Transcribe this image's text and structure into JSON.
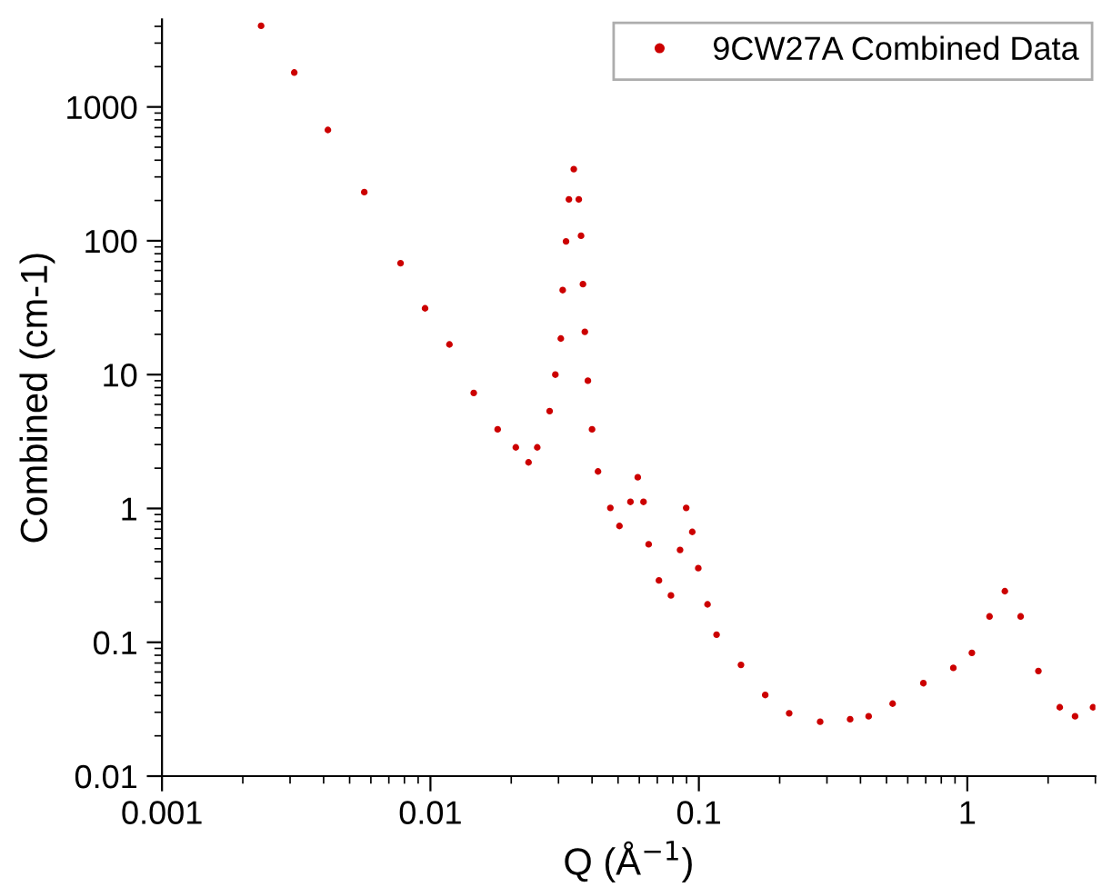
{
  "chart_data": {
    "type": "scatter",
    "xlabel": "Q (Å$^{−1}$)",
    "ylabel": "Combined (cm-1)",
    "log": "xy",
    "marker": "circle",
    "legend": "top right",
    "grid": false,
    "xlim": [
      0.001,
      3
    ],
    "ylim": [
      0.01,
      4500
    ],
    "xticks": [
      {
        "value": 0.001,
        "label": "0.001"
      },
      {
        "value": 0.01,
        "label": "0.01"
      },
      {
        "value": 0.1,
        "label": "0.1"
      },
      {
        "value": 1,
        "label": "1"
      }
    ],
    "yticks": [
      {
        "value": 0.01,
        "label": "0.01"
      },
      {
        "value": 0.1,
        "label": "0.1"
      },
      {
        "value": 1,
        "label": "1"
      },
      {
        "value": 10,
        "label": "10"
      },
      {
        "value": 100,
        "label": "100"
      },
      {
        "value": 1000,
        "label": "1000"
      }
    ],
    "series": [
      {
        "name": "9CW27A Combined Data",
        "color": "#cc0000",
        "x": [
          0.00234,
          0.00311,
          0.00415,
          0.00567,
          0.00774,
          0.00955,
          0.01177,
          0.0145,
          0.0178,
          0.0208,
          0.0232,
          0.025,
          0.0278,
          0.0292,
          0.0306,
          0.0311,
          0.032,
          0.0328,
          0.0342,
          0.0357,
          0.0364,
          0.037,
          0.0376,
          0.0386,
          0.04,
          0.0421,
          0.0468,
          0.0506,
          0.0556,
          0.0592,
          0.0622,
          0.065,
          0.071,
          0.0787,
          0.0851,
          0.0897,
          0.0945,
          0.0995,
          0.1077,
          0.1164,
          0.1435,
          0.1767,
          0.217,
          0.283,
          0.366,
          0.429,
          0.527,
          0.686,
          0.887,
          1.04,
          1.21,
          1.38,
          1.58,
          1.84,
          2.21,
          2.52,
          2.94
        ],
        "values": [
          4036,
          1808,
          673,
          231,
          68,
          31.3,
          16.8,
          7.3,
          3.9,
          2.86,
          2.21,
          2.86,
          5.34,
          10,
          18.6,
          42.8,
          99,
          204,
          343,
          204,
          109,
          47.4,
          20.9,
          9.0,
          3.9,
          1.89,
          1.01,
          0.74,
          1.12,
          1.71,
          1.12,
          0.54,
          0.29,
          0.224,
          0.49,
          1.01,
          0.668,
          0.358,
          0.192,
          0.114,
          0.0678,
          0.0404,
          0.0295,
          0.0255,
          0.0266,
          0.028,
          0.0348,
          0.0495,
          0.0644,
          0.0834,
          0.156,
          0.241,
          0.156,
          0.061,
          0.0327,
          0.028,
          0.0327
        ]
      }
    ]
  }
}
